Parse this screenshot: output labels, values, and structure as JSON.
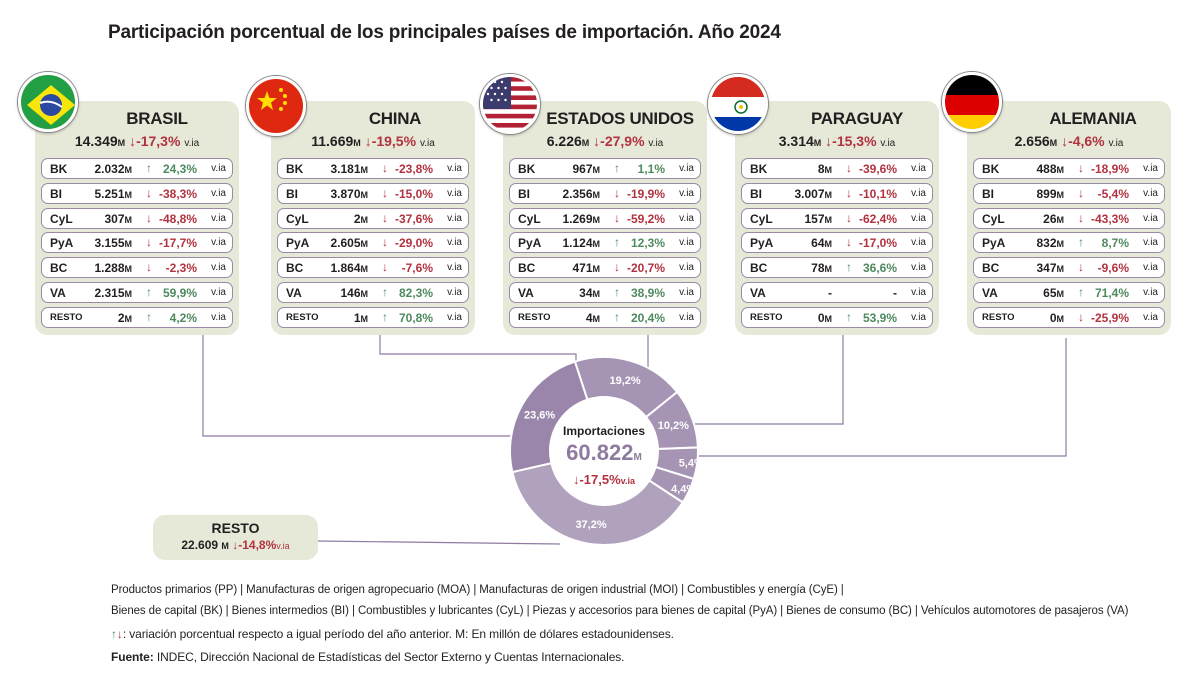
{
  "title": "Participación porcentual de los principales países de importación. Año 2024",
  "unit_m": "M",
  "via": "v.ia",
  "chart_data": {
    "type": "pie",
    "center_label": "Importaciones",
    "center_value": "60.822",
    "center_unit": "M",
    "center_variation": "↓-17,5%",
    "center_via": "v.ia",
    "categories": [
      "CHINA",
      "ESTADOS UNIDOS",
      "PARAGUAY",
      "ALEMANIA",
      "RESTO",
      "BRASIL"
    ],
    "values": [
      19.2,
      10.2,
      5.4,
      4.4,
      37.2,
      23.6
    ],
    "labels": [
      "19,2%",
      "10,2%",
      "5,4%",
      "4,4%",
      "37,2%",
      "23,6%"
    ],
    "colors": [
      "#a694b4",
      "#a694b4",
      "#a694b4",
      "#a694b4",
      "#b0a2bd",
      "#9a86aa"
    ]
  },
  "countries": [
    {
      "name": "BRASIL",
      "flag": "brazil-flag-icon",
      "total": "14.349",
      "trend": "down",
      "variation": "↓-17,3%",
      "rows": [
        {
          "label": "BK",
          "value": "2.032",
          "trend": "up",
          "arrow": "↑",
          "var": "24,3%"
        },
        {
          "label": "BI",
          "value": "5.251",
          "trend": "down",
          "arrow": "↓",
          "var": "-38,3%"
        },
        {
          "label": "CyL",
          "value": "307",
          "trend": "down",
          "arrow": "↓",
          "var": "-48,8%"
        },
        {
          "label": "PyA",
          "value": "3.155",
          "trend": "down",
          "arrow": "↓",
          "var": "-17,7%"
        },
        {
          "label": "BC",
          "value": "1.288",
          "trend": "down",
          "arrow": "↓",
          "var": "-2,3%"
        },
        {
          "label": "VA",
          "value": "2.315",
          "trend": "up",
          "arrow": "↑",
          "var": "59,9%"
        },
        {
          "label": "RESTO",
          "value": "2",
          "trend": "up",
          "arrow": "↑",
          "var": "4,2%"
        }
      ]
    },
    {
      "name": "CHINA",
      "flag": "china-flag-icon",
      "total": "11.669",
      "trend": "down",
      "variation": "↓-19,5%",
      "rows": [
        {
          "label": "BK",
          "value": "3.181",
          "trend": "down",
          "arrow": "↓",
          "var": "-23,8%"
        },
        {
          "label": "BI",
          "value": "3.870",
          "trend": "down",
          "arrow": "↓",
          "var": "-15,0%"
        },
        {
          "label": "CyL",
          "value": "2",
          "trend": "down",
          "arrow": "↓",
          "var": "-37,6%"
        },
        {
          "label": "PyA",
          "value": "2.605",
          "trend": "down",
          "arrow": "↓",
          "var": "-29,0%"
        },
        {
          "label": "BC",
          "value": "1.864",
          "trend": "down",
          "arrow": "↓",
          "var": "-7,6%"
        },
        {
          "label": "VA",
          "value": "146",
          "trend": "up",
          "arrow": "↑",
          "var": "82,3%"
        },
        {
          "label": "RESTO",
          "value": "1",
          "trend": "up",
          "arrow": "↑",
          "var": "70,8%"
        }
      ]
    },
    {
      "name": "ESTADOS UNIDOS",
      "flag": "usa-flag-icon",
      "total": "6.226",
      "trend": "down",
      "variation": "↓-27,9%",
      "rows": [
        {
          "label": "BK",
          "value": "967",
          "trend": "up",
          "arrow": "↑",
          "var": "1,1%"
        },
        {
          "label": "BI",
          "value": "2.356",
          "trend": "down",
          "arrow": "↓",
          "var": "-19,9%"
        },
        {
          "label": "CyL",
          "value": "1.269",
          "trend": "down",
          "arrow": "↓",
          "var": "-59,2%"
        },
        {
          "label": "PyA",
          "value": "1.124",
          "trend": "up",
          "arrow": "↑",
          "var": "12,3%"
        },
        {
          "label": "BC",
          "value": "471",
          "trend": "down",
          "arrow": "↓",
          "var": "-20,7%"
        },
        {
          "label": "VA",
          "value": "34",
          "trend": "up",
          "arrow": "↑",
          "var": "38,9%"
        },
        {
          "label": "RESTO",
          "value": "4",
          "trend": "up",
          "arrow": "↑",
          "var": "20,4%"
        }
      ]
    },
    {
      "name": "PARAGUAY",
      "flag": "paraguay-flag-icon",
      "total": "3.314",
      "trend": "down",
      "variation": "↓-15,3%",
      "rows": [
        {
          "label": "BK",
          "value": "8",
          "trend": "down",
          "arrow": "↓",
          "var": "-39,6%"
        },
        {
          "label": "BI",
          "value": "3.007",
          "trend": "down",
          "arrow": "↓",
          "var": "-10,1%"
        },
        {
          "label": "CyL",
          "value": "157",
          "trend": "down",
          "arrow": "↓",
          "var": "-62,4%"
        },
        {
          "label": "PyA",
          "value": "64",
          "trend": "down",
          "arrow": "↓",
          "var": "-17,0%"
        },
        {
          "label": "BC",
          "value": "78",
          "trend": "up",
          "arrow": "↑",
          "var": "36,6%"
        },
        {
          "label": "VA",
          "value": "-",
          "trend": "none",
          "arrow": "",
          "var": "-",
          "no_unit": true
        },
        {
          "label": "RESTO",
          "value": "0",
          "trend": "up",
          "arrow": "↑",
          "var": "53,9%"
        }
      ]
    },
    {
      "name": "ALEMANIA",
      "flag": "germany-flag-icon",
      "total": "2.656",
      "trend": "down",
      "variation": "↓-4,6%",
      "rows": [
        {
          "label": "BK",
          "value": "488",
          "trend": "down",
          "arrow": "↓",
          "var": "-18,9%"
        },
        {
          "label": "BI",
          "value": "899",
          "trend": "down",
          "arrow": "↓",
          "var": "-5,4%"
        },
        {
          "label": "CyL",
          "value": "26",
          "trend": "down",
          "arrow": "↓",
          "var": "-43,3%"
        },
        {
          "label": "PyA",
          "value": "832",
          "trend": "up",
          "arrow": "↑",
          "var": "8,7%"
        },
        {
          "label": "BC",
          "value": "347",
          "trend": "down",
          "arrow": "↓",
          "var": "-9,6%"
        },
        {
          "label": "VA",
          "value": "65",
          "trend": "up",
          "arrow": "↑",
          "var": "71,4%"
        },
        {
          "label": "RESTO",
          "value": "0",
          "trend": "down",
          "arrow": "↓",
          "var": "-25,9%"
        }
      ]
    }
  ],
  "resto": {
    "name": "RESTO",
    "total": "22.609",
    "variation": "↓-14,8%",
    "via": "v.ia"
  },
  "footer": {
    "line1": "Productos primarios (PP)  |  Manufacturas de origen agropecuario (MOA)  |  Manufacturas de origen industrial (MOI) | Combustibles y energía (CyE)  |",
    "line2": "Bienes de capital (BK)  |  Bienes intermedios (BI)  |  Combustibles y lubricantes (CyL)  |  Piezas y accesorios para bienes de capital (PyA)  |  Bienes de consumo (BC)  |  Vehículos automotores de pasajeros (VA)",
    "line3_arrows": "↑↓",
    "line3": ": variación porcentual respecto a igual período del año anterior. M: En millón de dólares estadounidenses.",
    "source_label": "Fuente:",
    "source": " INDEC, Dirección Nacional de Estadísticas del Sector Externo y Cuentas Internacionales."
  },
  "colors": {
    "up": "#4e8a5e",
    "down": "#b2323f",
    "card": "#e6e8d8",
    "donut": "#a694b4",
    "line": "#8e7ba0"
  }
}
